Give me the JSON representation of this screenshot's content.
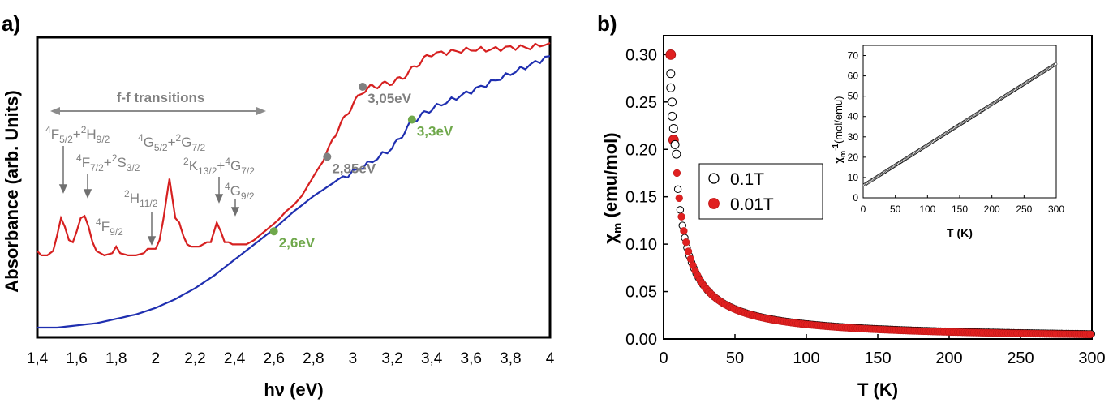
{
  "panel_a": {
    "label": "a)"
  },
  "panel_b": {
    "label": "b)"
  },
  "chart_data": [
    {
      "type": "line",
      "xlabel": "hν (eV)",
      "ylabel": "Absorbance (arb. Units)",
      "xlim": [
        1.4,
        4.0
      ],
      "x_tick_labels": [
        "1,4",
        "1,6",
        "1,8",
        "2",
        "2,2",
        "2,4",
        "2,6",
        "2,8",
        "3",
        "3,2",
        "3,4",
        "3,6",
        "3,8",
        "4"
      ],
      "grid": false,
      "series": [
        {
          "color": "#d62020",
          "x": [
            1.4,
            1.42,
            1.45,
            1.48,
            1.5,
            1.52,
            1.54,
            1.56,
            1.58,
            1.6,
            1.62,
            1.64,
            1.66,
            1.68,
            1.7,
            1.74,
            1.78,
            1.8,
            1.82,
            1.86,
            1.9,
            1.94,
            1.96,
            1.98,
            2.0,
            2.02,
            2.04,
            2.06,
            2.07,
            2.08,
            2.1,
            2.12,
            2.14,
            2.16,
            2.18,
            2.2,
            2.22,
            2.24,
            2.26,
            2.28,
            2.3,
            2.31,
            2.33,
            2.35,
            2.37,
            2.39,
            2.42,
            2.46,
            2.5,
            2.54,
            2.58,
            2.62,
            2.66,
            2.7,
            2.74,
            2.78,
            2.82,
            2.85,
            2.88,
            2.92,
            2.96,
            3.0,
            3.05,
            3.1,
            3.15,
            3.2,
            3.25,
            3.3,
            3.35,
            3.4,
            3.5,
            3.6,
            3.7,
            3.8,
            3.9,
            4.0
          ],
          "y": [
            0.35,
            0.33,
            0.33,
            0.35,
            0.42,
            0.5,
            0.46,
            0.4,
            0.39,
            0.44,
            0.5,
            0.51,
            0.46,
            0.39,
            0.35,
            0.33,
            0.34,
            0.37,
            0.34,
            0.33,
            0.33,
            0.34,
            0.36,
            0.36,
            0.36,
            0.4,
            0.5,
            0.62,
            0.68,
            0.62,
            0.5,
            0.48,
            0.42,
            0.38,
            0.37,
            0.37,
            0.37,
            0.38,
            0.39,
            0.39,
            0.45,
            0.48,
            0.44,
            0.39,
            0.39,
            0.38,
            0.38,
            0.38,
            0.4,
            0.43,
            0.46,
            0.49,
            0.53,
            0.56,
            0.6,
            0.66,
            0.72,
            0.76,
            0.83,
            0.9,
            0.96,
            1.02,
            1.08,
            1.1,
            1.11,
            1.12,
            1.14,
            1.18,
            1.22,
            1.25,
            1.26,
            1.27,
            1.27,
            1.28,
            1.28,
            1.3
          ]
        },
        {
          "color": "#1f2fb0",
          "x": [
            1.4,
            1.5,
            1.6,
            1.7,
            1.8,
            1.9,
            2.0,
            2.1,
            2.2,
            2.3,
            2.4,
            2.5,
            2.6,
            2.7,
            2.8,
            2.9,
            3.0,
            3.1,
            3.2,
            3.25,
            3.3,
            3.35,
            3.4,
            3.5,
            3.6,
            3.7,
            3.8,
            3.9,
            4.0
          ],
          "y": [
            0.0,
            0.0,
            0.01,
            0.02,
            0.04,
            0.06,
            0.09,
            0.13,
            0.18,
            0.24,
            0.31,
            0.38,
            0.45,
            0.53,
            0.6,
            0.66,
            0.71,
            0.76,
            0.82,
            0.88,
            0.94,
            0.97,
            1.0,
            1.04,
            1.08,
            1.12,
            1.16,
            1.2,
            1.24
          ]
        }
      ],
      "annotations": {
        "ff_label": "f-f transitions",
        "t1": "4F5/2+2H9/2",
        "t2": "4F7/2+2S3/2",
        "t3": "4F9/2",
        "t4": "2H11/2",
        "t5": "4G5/2+2G7/2",
        "t6": "2K13/2+4G7/2",
        "t7": "4G9/2"
      },
      "points": [
        {
          "label": "3,05eV",
          "x": 3.05,
          "y": 1.1,
          "color": "#808080"
        },
        {
          "label": "2,85eV",
          "x": 2.87,
          "y": 0.78,
          "color": "#808080"
        },
        {
          "label": "3,3eV",
          "x": 3.3,
          "y": 0.95,
          "color": "#6fa84b"
        },
        {
          "label": "2,6eV",
          "x": 2.6,
          "y": 0.44,
          "color": "#6fa84b"
        }
      ]
    },
    {
      "type": "scatter",
      "xlabel": "T (K)",
      "ylabel": "χm (emu/mol)",
      "xlim": [
        0,
        300
      ],
      "ylim": [
        0,
        0.32
      ],
      "x_ticks": [
        0,
        50,
        100,
        150,
        200,
        250,
        300
      ],
      "y_ticks": [
        "0.00",
        "0.05",
        "0.10",
        "0.15",
        "0.20",
        "0.25",
        "0.30"
      ],
      "legend": {
        "position": "center-right",
        "entries": [
          "0.1T",
          "0.01T"
        ]
      },
      "series": [
        {
          "name": "0.1T",
          "marker": "open-circle",
          "color": "#000000",
          "model": "C/T",
          "C": 1.58,
          "T_range": [
            2,
            300
          ]
        },
        {
          "name": "0.01T",
          "marker": "filled-circle",
          "color": "#e02020",
          "model": "C/T",
          "C": 1.58,
          "T_range": [
            5,
            300
          ]
        }
      ],
      "highlighted_points": [
        {
          "series": "0.01T",
          "T": 5,
          "chi": 0.3
        },
        {
          "series": "0.01T",
          "T": 7,
          "chi": 0.21
        },
        {
          "series": "0.1T",
          "T": 5,
          "chi": 0.28
        },
        {
          "series": "0.1T",
          "T": 5,
          "chi": 0.265
        },
        {
          "series": "0.1T",
          "T": 6,
          "chi": 0.25
        },
        {
          "series": "0.1T",
          "T": 6,
          "chi": 0.235
        },
        {
          "series": "0.1T",
          "T": 7,
          "chi": 0.222
        },
        {
          "series": "0.1T",
          "T": 8,
          "chi": 0.205
        },
        {
          "series": "0.1T",
          "T": 9,
          "chi": 0.195
        }
      ],
      "inset": {
        "type": "scatter",
        "xlabel": "T (K)",
        "ylabel": "χm-1(mol/emu)",
        "xlim": [
          0,
          300
        ],
        "ylim": [
          0,
          75
        ],
        "x_ticks": [
          0,
          50,
          100,
          150,
          200,
          250,
          300
        ],
        "y_ticks": [
          0,
          10,
          20,
          30,
          40,
          50,
          60,
          70
        ],
        "series": [
          {
            "marker": "open-circle",
            "color": "#000000",
            "slope": 0.2,
            "intercept": 6,
            "T_range": [
              2,
              300
            ]
          }
        ]
      }
    }
  ]
}
